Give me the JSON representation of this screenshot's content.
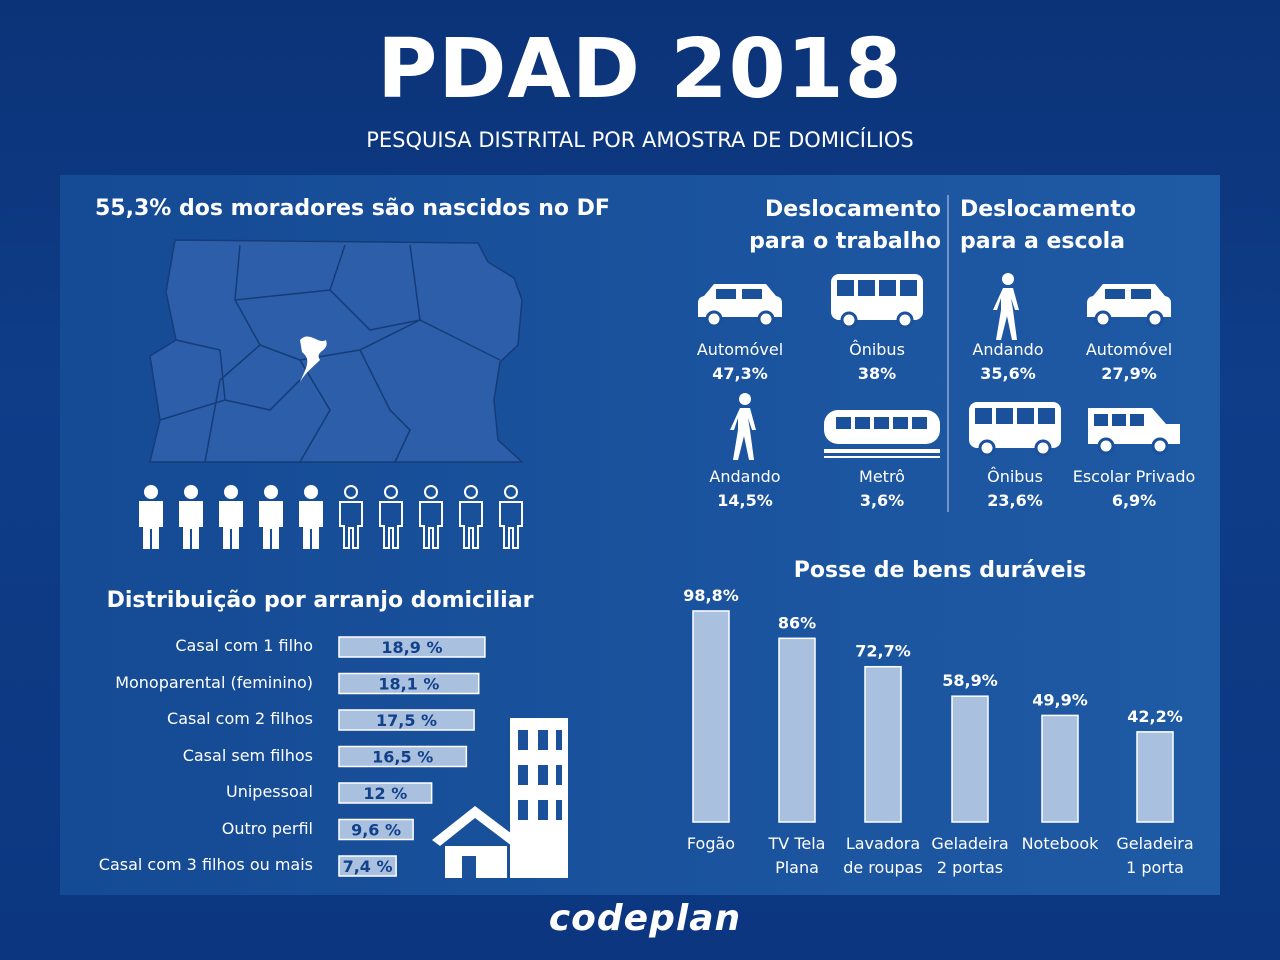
{
  "header": {
    "title": "PDAD 2018",
    "subtitle": "PESQUISA DISTRITAL POR AMOSTRA DE DOMICÍLIOS"
  },
  "born": {
    "title": "55,3% dos moradores são nascidos no DF"
  },
  "commute_work": {
    "title": "Deslocamento para o trabalho",
    "modes": [
      {
        "label": "Automóvel",
        "value": "47,3%"
      },
      {
        "label": "Ônibus",
        "value": "38%"
      },
      {
        "label": "Andando",
        "value": "14,5%"
      },
      {
        "label": "Metrô",
        "value": "3,6%"
      }
    ]
  },
  "commute_school": {
    "title": "Deslocamento para a escola",
    "modes": [
      {
        "label": "Andando",
        "value": "35,6%"
      },
      {
        "label": "Automóvel",
        "value": "27,9%"
      },
      {
        "label": "Ônibus",
        "value": "23,6%"
      },
      {
        "label": "Escolar Privado",
        "value": "6,9%"
      }
    ]
  },
  "chart_data": [
    {
      "type": "hbar",
      "title": "Distribuição por arranjo domiciliar",
      "categories": [
        "Casal com 1 filho",
        "Monoparental (feminino)",
        "Casal com 2 filhos",
        "Casal sem filhos",
        "Unipessoal",
        "Outro perfil",
        "Casal com 3 filhos ou mais"
      ],
      "values": [
        18.9,
        18.1,
        17.5,
        16.5,
        12,
        9.6,
        7.4
      ],
      "value_labels": [
        "18,9 %",
        "18,1 %",
        "17,5 %",
        "16,5 %",
        "12 %",
        "9,6 %",
        "7,4 %"
      ],
      "color": "#a9c0df"
    },
    {
      "type": "bar",
      "title": "Posse de bens duráveis",
      "categories": [
        "Fogão",
        "TV Tela Plana",
        "Lavadora de roupas",
        "Geladeira 2 portas",
        "Notebook",
        "Geladeira 1 porta"
      ],
      "values": [
        98.8,
        86,
        72.7,
        58.9,
        49.9,
        42.2
      ],
      "value_labels": [
        "98,8%",
        "86%",
        "72,7%",
        "58,9%",
        "49,9%",
        "42,2%"
      ],
      "color": "#a9c0df"
    }
  ],
  "footer": {
    "logo": "codeplan"
  }
}
